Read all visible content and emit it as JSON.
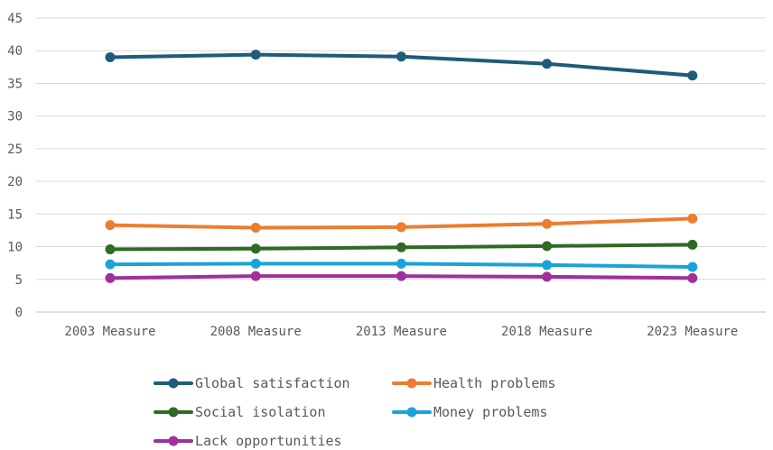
{
  "chart_data": {
    "type": "line",
    "title": "",
    "xlabel": "",
    "ylabel": "",
    "categories": [
      "2003 Measure",
      "2008 Measure",
      "2013 Measure",
      "2018 Measure",
      "2023 Measure"
    ],
    "ylim": [
      0,
      45
    ],
    "yticks": [
      0,
      5,
      10,
      15,
      20,
      25,
      30,
      35,
      40,
      45
    ],
    "grid": true,
    "legend_position": "bottom",
    "series": [
      {
        "name": "Global satisfaction",
        "color": "#1f5b7a",
        "values": [
          39.0,
          39.4,
          39.1,
          38.0,
          36.2
        ]
      },
      {
        "name": "Health problems",
        "color": "#ed7d31",
        "values": [
          13.3,
          12.9,
          13.0,
          13.5,
          14.3
        ]
      },
      {
        "name": "Social isolation",
        "color": "#2e6b23",
        "values": [
          9.6,
          9.7,
          9.9,
          10.1,
          10.3
        ]
      },
      {
        "name": "Money problems",
        "color": "#1aa3d9",
        "values": [
          7.3,
          7.4,
          7.4,
          7.2,
          6.9
        ]
      },
      {
        "name": "Lack opportunities",
        "color": "#a0309a",
        "values": [
          5.2,
          5.5,
          5.5,
          5.4,
          5.2
        ]
      }
    ]
  }
}
